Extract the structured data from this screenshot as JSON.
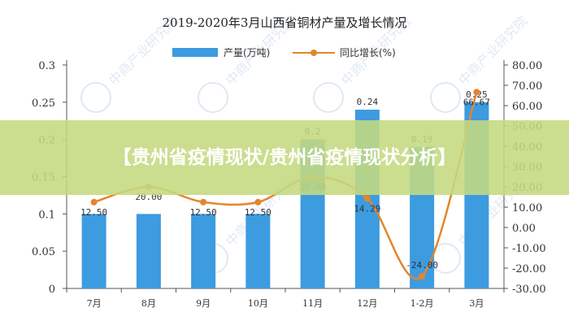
{
  "banner": {
    "text": "【贵州省疫情现状/贵州省疫情现状分析】"
  },
  "colors": {
    "bar": "#3d9be0",
    "line": "#e4852b",
    "watermark": "#c5d7ea"
  },
  "watermark": {
    "text": "中商产业研究院"
  },
  "chart_data": {
    "type": "bar+line",
    "title": "2019-2020年3月山西省铜材产量及增长情况",
    "categories": [
      "7月",
      "8月",
      "9月",
      "10月",
      "11月",
      "12月",
      "1-2月",
      "3月"
    ],
    "series": [
      {
        "name": "产量(万吨)",
        "type": "bar",
        "axis": "left",
        "values": [
          0.1,
          0.1,
          0.1,
          0.1,
          0.2,
          0.24,
          0.19,
          0.25
        ],
        "labels": [
          "",
          "",
          "",
          "",
          "0.2",
          "0.24",
          "0.19",
          "0.25"
        ]
      },
      {
        "name": "同比增长(%)",
        "type": "line",
        "axis": "right",
        "values": [
          12.5,
          20.0,
          12.5,
          12.5,
          25.0,
          14.29,
          -24.0,
          66.67
        ],
        "labels": [
          "12.50",
          "20.00",
          "12.50",
          "12.50",
          "25.00",
          "14.29",
          "-24.00",
          "66.67"
        ]
      }
    ],
    "y_left": {
      "min": 0,
      "max": 0.3,
      "ticks": [
        "0",
        "0.05",
        "0.1",
        "0.15",
        "0.2",
        "0.25",
        "0.3"
      ]
    },
    "y_right": {
      "min": -30,
      "max": 80,
      "ticks": [
        "-30.00",
        "-20.00",
        "-10.00",
        "0.00",
        "10.00",
        "20.00",
        "30.00",
        "40.00",
        "50.00",
        "60.00",
        "70.00",
        "80.00"
      ]
    },
    "legend": "top-center",
    "grid": false
  }
}
